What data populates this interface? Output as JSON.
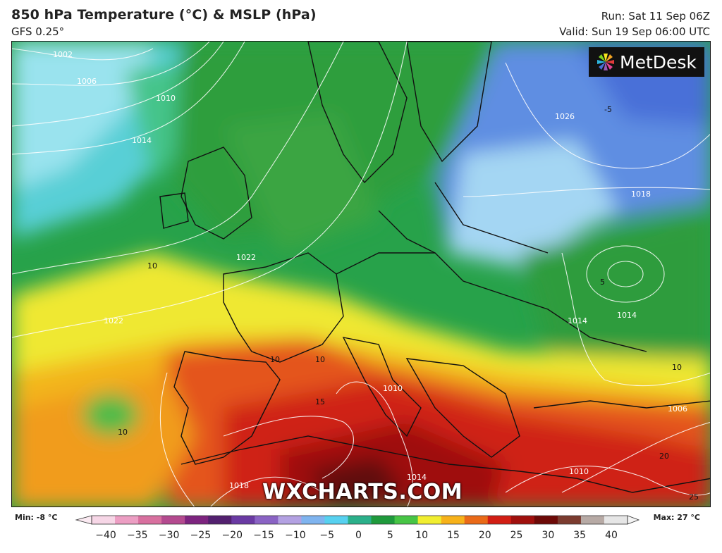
{
  "header": {
    "title": "850 hPa Temperature (°C) & MSLP (hPa)",
    "model": "GFS 0.25°",
    "run": "Run: Sat 11 Sep 06Z",
    "valid": "Valid: Sun 19 Sep 06:00 UTC"
  },
  "brand": {
    "name": "MetDesk",
    "icon": "metdesk-logo-icon"
  },
  "watermark": "WXCHARTS.COM",
  "legend": {
    "min_label": "Min: -8 °C",
    "max_label": "Max: 27 °C",
    "ticks": [
      "−40",
      "−35",
      "−30",
      "−25",
      "−20",
      "−15",
      "−10",
      "−5",
      "0",
      "5",
      "10",
      "15",
      "20",
      "25",
      "30",
      "35",
      "40"
    ],
    "colors": [
      "#f6d6e6",
      "#ec9ec3",
      "#d8709f",
      "#b44a8f",
      "#7d247f",
      "#53206f",
      "#6a3aa3",
      "#8a63c4",
      "#b3a1e2",
      "#7fb4ef",
      "#57d1f0",
      "#2bb08a",
      "#1f9a3c",
      "#47c545",
      "#f1ee30",
      "#f7b21a",
      "#ea6a18",
      "#d21e14",
      "#a0100d",
      "#6d0a07",
      "#7b3b2f",
      "#b7aaa5",
      "#e6e6e6"
    ]
  },
  "map": {
    "isobar_labels": [
      "1002",
      "1006",
      "1010",
      "1014",
      "1022",
      "1022",
      "1026",
      "1018",
      "1014",
      "1014",
      "1010",
      "1006",
      "1014",
      "1018",
      "1010"
    ],
    "temperature_labels": [
      "10",
      "10",
      "10",
      "15",
      "10",
      "-5",
      "5",
      "20",
      "25",
      "10"
    ]
  }
}
